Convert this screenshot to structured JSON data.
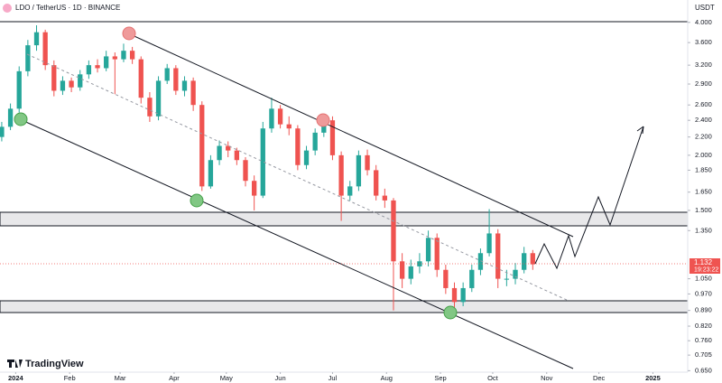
{
  "chart_data": {
    "type": "candlestick",
    "title": "LDO / TetherUS · 1D · BINANCE",
    "currency": "USDT",
    "countdown": "19:23:22",
    "brand": "TradingView",
    "log_scale": true,
    "grid": false,
    "up_color": "#26a69a",
    "down_color": "#ef5350",
    "xlim": [
      -9,
      386
    ],
    "ylim": [
      0.645,
      4.13
    ],
    "xticks": [
      {
        "value": 0,
        "label": "2024"
      },
      {
        "value": 31,
        "label": "Feb"
      },
      {
        "value": 60,
        "label": "Mar"
      },
      {
        "value": 91,
        "label": "Apr"
      },
      {
        "value": 121,
        "label": "May"
      },
      {
        "value": 152,
        "label": "Jun"
      },
      {
        "value": 182,
        "label": "Jul"
      },
      {
        "value": 213,
        "label": "Aug"
      },
      {
        "value": 244,
        "label": "Sep"
      },
      {
        "value": 274,
        "label": "Oct"
      },
      {
        "value": 305,
        "label": "Nov"
      },
      {
        "value": 335,
        "label": "Dec"
      },
      {
        "value": 366,
        "label": "2025"
      }
    ],
    "yticks": [
      {
        "value": 4,
        "label": "4.000"
      },
      {
        "value": 3.6,
        "label": "3.600"
      },
      {
        "value": 3.2,
        "label": "3.200"
      },
      {
        "value": 2.9,
        "label": "2.900"
      },
      {
        "value": 2.6,
        "label": "2.600"
      },
      {
        "value": 2.4,
        "label": "2.400"
      },
      {
        "value": 2.2,
        "label": "2.200"
      },
      {
        "value": 2,
        "label": "2.000"
      },
      {
        "value": 1.85,
        "label": "1.850"
      },
      {
        "value": 1.65,
        "label": "1.650"
      },
      {
        "value": 1.5,
        "label": "1.500"
      },
      {
        "value": 1.35,
        "label": "1.350"
      },
      {
        "value": 1.05,
        "label": "1.050"
      },
      {
        "value": 0.97,
        "label": "0.970"
      },
      {
        "value": 0.89,
        "label": "0.890"
      },
      {
        "value": 0.82,
        "label": "0.820"
      },
      {
        "value": 0.76,
        "label": "0.760"
      },
      {
        "value": 0.705,
        "label": "0.705"
      },
      {
        "value": 0.65,
        "label": "0.650"
      }
    ],
    "series": [
      {
        "name": "LDO / TetherUS",
        "x": [
          -8,
          -3,
          2,
          7,
          12,
          17,
          22,
          27,
          32,
          37,
          42,
          47,
          52,
          57,
          62,
          67,
          72,
          77,
          82,
          87,
          92,
          97,
          102,
          107,
          112,
          117,
          122,
          127,
          132,
          137,
          142,
          147,
          152,
          157,
          162,
          167,
          172,
          177,
          182,
          187,
          192,
          197,
          202,
          207,
          212,
          217,
          222,
          227,
          232,
          237,
          242,
          247,
          252,
          257,
          262,
          267,
          272,
          277,
          282,
          287,
          292,
          297
        ],
        "open": [
          2.2,
          2.32,
          2.55,
          3.1,
          3.55,
          3.8,
          3.2,
          2.8,
          2.95,
          2.85,
          3.05,
          3.2,
          3.15,
          3.35,
          3.3,
          3.45,
          3.3,
          2.7,
          2.45,
          2.95,
          3.15,
          2.8,
          2.95,
          2.6,
          1.7,
          1.95,
          2.1,
          2.05,
          1.95,
          1.75,
          1.62,
          2.3,
          2.55,
          2.35,
          2.3,
          1.9,
          2.05,
          2.25,
          2.4,
          2.0,
          1.62,
          1.7,
          2.0,
          1.85,
          1.62,
          1.58,
          1.15,
          1.05,
          1.12,
          1.15,
          1.3,
          1.1,
          1.0,
          0.93,
          1.0,
          1.1,
          1.2,
          1.33,
          1.05,
          1.05,
          1.1,
          1.2
        ],
        "high": [
          2.38,
          2.62,
          3.18,
          3.65,
          3.94,
          3.85,
          3.28,
          3.02,
          3.0,
          3.12,
          3.28,
          3.3,
          3.45,
          3.42,
          3.58,
          3.52,
          3.35,
          2.78,
          3.02,
          3.22,
          3.2,
          3.02,
          3.0,
          2.65,
          2.0,
          2.16,
          2.15,
          2.08,
          1.98,
          1.8,
          2.38,
          2.7,
          2.6,
          2.45,
          2.34,
          2.1,
          2.3,
          2.48,
          2.45,
          2.04,
          1.75,
          2.05,
          2.06,
          1.9,
          1.68,
          1.6,
          1.2,
          1.16,
          1.2,
          1.35,
          1.33,
          1.13,
          1.03,
          1.03,
          1.13,
          1.23,
          1.51,
          1.36,
          1.1,
          1.14,
          1.24,
          1.22
        ],
        "low": [
          2.15,
          2.28,
          2.5,
          3.02,
          3.45,
          3.12,
          2.72,
          2.74,
          2.78,
          2.8,
          2.98,
          3.08,
          3.1,
          2.75,
          3.25,
          3.22,
          2.62,
          2.38,
          2.4,
          2.9,
          2.74,
          2.72,
          2.52,
          1.66,
          1.68,
          1.9,
          1.98,
          1.9,
          1.7,
          1.5,
          1.6,
          2.25,
          2.3,
          2.22,
          1.85,
          1.86,
          2.0,
          2.2,
          1.95,
          1.42,
          1.58,
          1.66,
          1.8,
          1.58,
          1.52,
          0.89,
          1.0,
          1.02,
          1.08,
          1.12,
          1.06,
          0.97,
          0.88,
          0.91,
          0.98,
          1.07,
          1.18,
          1.0,
          1.01,
          1.02,
          1.08,
          1.1
        ],
        "close": [
          2.32,
          2.55,
          3.1,
          3.55,
          3.8,
          3.2,
          2.8,
          2.95,
          2.85,
          3.05,
          3.2,
          3.15,
          3.35,
          3.3,
          3.45,
          3.3,
          2.7,
          2.45,
          2.95,
          3.15,
          2.8,
          2.95,
          2.6,
          1.7,
          1.95,
          2.1,
          2.05,
          1.95,
          1.75,
          1.62,
          2.3,
          2.55,
          2.35,
          2.3,
          1.9,
          2.05,
          2.25,
          2.4,
          2.0,
          1.62,
          1.7,
          2.0,
          1.85,
          1.62,
          1.58,
          1.15,
          1.05,
          1.12,
          1.15,
          1.3,
          1.1,
          1.0,
          0.93,
          1.0,
          1.1,
          1.2,
          1.33,
          1.05,
          1.05,
          1.1,
          1.2,
          1.132
        ]
      }
    ]
  }
}
